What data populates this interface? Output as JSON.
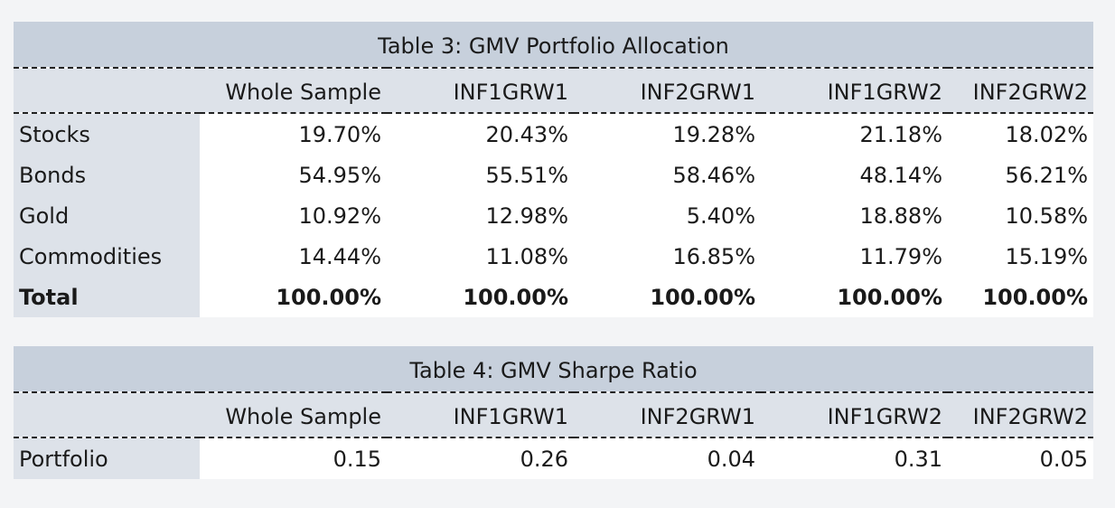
{
  "chart_data": [
    {
      "type": "table",
      "title": "Table 3: GMV Portfolio Allocation",
      "columns": [
        "Whole Sample",
        "INF1GRW1",
        "INF2GRW1",
        "INF1GRW2",
        "INF2GRW2"
      ],
      "rows": [
        {
          "label": "Stocks",
          "values": [
            "19.70%",
            "20.43%",
            "19.28%",
            "21.18%",
            "18.02%"
          ]
        },
        {
          "label": "Bonds",
          "values": [
            "54.95%",
            "55.51%",
            "58.46%",
            "48.14%",
            "56.21%"
          ]
        },
        {
          "label": "Gold",
          "values": [
            "10.92%",
            "12.98%",
            "5.40%",
            "18.88%",
            "10.58%"
          ]
        },
        {
          "label": "Commodities",
          "values": [
            "14.44%",
            "11.08%",
            "16.85%",
            "11.79%",
            "15.19%"
          ]
        },
        {
          "label": "Total",
          "values": [
            "100.00%",
            "100.00%",
            "100.00%",
            "100.00%",
            "100.00%"
          ]
        }
      ]
    },
    {
      "type": "table",
      "title": "Table 4: GMV Sharpe Ratio",
      "columns": [
        "Whole Sample",
        "INF1GRW1",
        "INF2GRW1",
        "INF1GRW2",
        "INF2GRW2"
      ],
      "rows": [
        {
          "label": "Portfolio",
          "values": [
            "0.15",
            "0.26",
            "0.04",
            "0.31",
            "0.05"
          ]
        }
      ]
    }
  ]
}
